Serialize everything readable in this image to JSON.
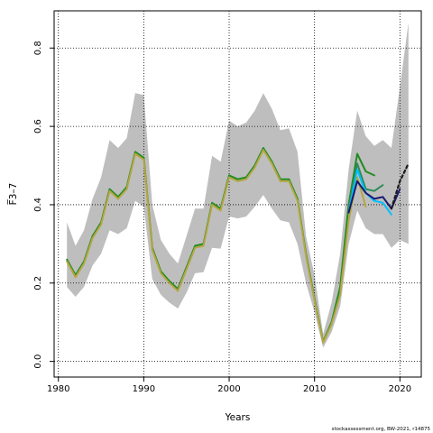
{
  "chart_data": {
    "type": "line",
    "xlabel": "Years",
    "ylabel": "F̅3–7",
    "xlim": [
      1979.5,
      2022.5
    ],
    "ylim": [
      -0.04,
      0.895
    ],
    "x_ticks": [
      1980,
      1990,
      2000,
      2010,
      2020
    ],
    "y_ticks": [
      0.0,
      0.2,
      0.4,
      0.6,
      0.8
    ],
    "grid": "dotted",
    "credit": "stockassessment.org, BW-2021, r14875",
    "confidence_band": {
      "color": "#bebebe",
      "x": [
        1981,
        1982,
        1983,
        1984,
        1985,
        1986,
        1987,
        1988,
        1989,
        1990,
        1991,
        1992,
        1993,
        1994,
        1995,
        1996,
        1997,
        1998,
        1999,
        2000,
        2001,
        2002,
        2003,
        2004,
        2005,
        2006,
        2007,
        2008,
        2009,
        2010,
        2011,
        2012,
        2013,
        2014,
        2015,
        2016,
        2017,
        2018,
        2019,
        2020,
        2021
      ],
      "lower": [
        0.19,
        0.165,
        0.19,
        0.245,
        0.275,
        0.335,
        0.325,
        0.34,
        0.41,
        0.395,
        0.21,
        0.17,
        0.15,
        0.135,
        0.175,
        0.225,
        0.228,
        0.29,
        0.288,
        0.37,
        0.365,
        0.37,
        0.395,
        0.425,
        0.39,
        0.36,
        0.355,
        0.3,
        0.2,
        0.125,
        0.035,
        0.075,
        0.14,
        0.3,
        0.385,
        0.34,
        0.325,
        0.325,
        0.29,
        0.31,
        0.3
      ],
      "upper": [
        0.355,
        0.295,
        0.335,
        0.415,
        0.47,
        0.565,
        0.545,
        0.57,
        0.685,
        0.68,
        0.4,
        0.31,
        0.275,
        0.25,
        0.32,
        0.39,
        0.39,
        0.525,
        0.51,
        0.615,
        0.6,
        0.61,
        0.64,
        0.685,
        0.645,
        0.59,
        0.595,
        0.535,
        0.32,
        0.22,
        0.07,
        0.15,
        0.275,
        0.49,
        0.64,
        0.575,
        0.55,
        0.565,
        0.545,
        0.7,
        0.865
      ]
    },
    "series": [
      {
        "color": "#228b22",
        "x": [
          1981,
          1982,
          1983,
          1984,
          1985,
          1986,
          1987,
          1988,
          1989,
          1990,
          1991,
          1992,
          1993,
          1994,
          1995,
          1996,
          1997,
          1998,
          1999,
          2000,
          2001,
          2002,
          2003,
          2004,
          2005,
          2006,
          2007,
          2008,
          2009,
          2010,
          2011,
          2012,
          2013,
          2014,
          2015,
          2016,
          2017
        ],
        "values": [
          0.26,
          0.22,
          0.255,
          0.32,
          0.355,
          0.44,
          0.42,
          0.445,
          0.535,
          0.52,
          0.29,
          0.23,
          0.205,
          0.185,
          0.24,
          0.295,
          0.3,
          0.405,
          0.39,
          0.475,
          0.465,
          0.47,
          0.5,
          0.545,
          0.51,
          0.465,
          0.465,
          0.415,
          0.275,
          0.16,
          0.05,
          0.1,
          0.19,
          0.4,
          0.53,
          0.485,
          0.475
        ]
      },
      {
        "color": "#b5a642",
        "x": [
          1981,
          1982,
          1983,
          1984,
          1985,
          1986,
          1987,
          1988,
          1989,
          1990,
          1991,
          1992,
          1993,
          1994,
          1995,
          1996,
          1997,
          1998,
          1999,
          2000,
          2001,
          2002,
          2003,
          2004,
          2005,
          2006,
          2007,
          2008,
          2009,
          2010,
          2011,
          2012,
          2013,
          2014,
          2015,
          2016
        ],
        "values": [
          0.255,
          0.215,
          0.25,
          0.315,
          0.35,
          0.435,
          0.415,
          0.44,
          0.53,
          0.515,
          0.285,
          0.225,
          0.2,
          0.18,
          0.235,
          0.29,
          0.295,
          0.4,
          0.385,
          0.47,
          0.46,
          0.465,
          0.495,
          0.54,
          0.505,
          0.46,
          0.46,
          0.41,
          0.27,
          0.155,
          0.048,
          0.095,
          0.17,
          0.36,
          0.47,
          0.395
        ]
      },
      {
        "color": "#2e8b57",
        "x": [
          2014,
          2015,
          2016,
          2017,
          2018
        ],
        "values": [
          0.39,
          0.505,
          0.44,
          0.435,
          0.45
        ]
      },
      {
        "color": "#00bfff",
        "x": [
          2014,
          2015,
          2016,
          2017,
          2018,
          2019
        ],
        "values": [
          0.38,
          0.49,
          0.43,
          0.41,
          0.405,
          0.375
        ]
      },
      {
        "color": "#191970",
        "x": [
          2014,
          2015,
          2016,
          2017,
          2018,
          2019,
          2020
        ],
        "values": [
          0.38,
          0.46,
          0.43,
          0.415,
          0.42,
          0.39,
          0.44
        ]
      },
      {
        "color": "#1c1c1c",
        "dash": "dotted",
        "x": [
          2019,
          2020,
          2021
        ],
        "values": [
          0.39,
          0.46,
          0.505
        ]
      }
    ]
  }
}
